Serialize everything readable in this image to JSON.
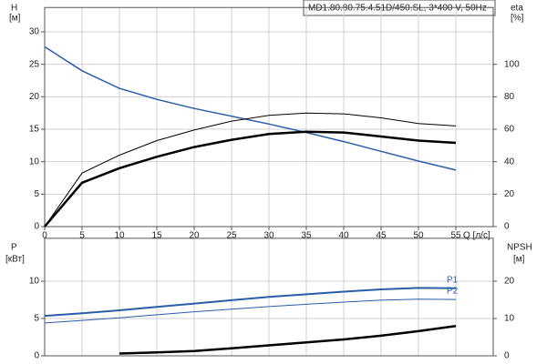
{
  "chart_data": [
    {
      "type": "line",
      "title": "MD1.80.80.75.4.51D/450.SL, 3*400 V, 50Hz",
      "ylabel": "H",
      "yunit": "[м]",
      "y2label": "eta",
      "y2unit": "[%]",
      "xlabel": "Q [л/с]",
      "x": [
        0,
        5,
        10,
        15,
        20,
        25,
        30,
        35,
        40,
        45,
        50,
        55
      ],
      "xlim": [
        0,
        60
      ],
      "xticks": [
        0,
        5,
        10,
        15,
        20,
        25,
        30,
        35,
        40,
        45,
        50,
        55
      ],
      "ylim": [
        0,
        33.75
      ],
      "yticks": [
        0,
        5,
        10,
        15,
        20,
        25,
        30
      ],
      "y2lim": [
        0,
        135
      ],
      "y2ticks": [
        0,
        20,
        40,
        60,
        80,
        100
      ],
      "grid": true,
      "series": [
        {
          "color": "#2a5ea8",
          "line_width": 1.5,
          "values": [
            27.7,
            24,
            21.3,
            19.6,
            18.2,
            17,
            15.8,
            14.5,
            13.1,
            11.6,
            10.1,
            8.7
          ]
        },
        {
          "color": "#000000",
          "line_width": 1,
          "axis": "y2",
          "values": [
            0,
            33,
            44,
            53,
            59.5,
            65,
            68.5,
            70,
            69.5,
            67,
            63.5,
            62
          ]
        },
        {
          "color": "#000000",
          "line_width": 2.5,
          "axis": "y2",
          "values": [
            0,
            27,
            36,
            43,
            49,
            53.5,
            57,
            58.5,
            58,
            55.5,
            53,
            51.6
          ]
        }
      ]
    },
    {
      "type": "line",
      "ylabel": "P",
      "yunit": "[кВт]",
      "y2label": "NPSH",
      "y2unit": "[м]",
      "x": [
        0,
        5,
        10,
        15,
        20,
        25,
        30,
        35,
        40,
        45,
        50,
        55
      ],
      "xlim": [
        0,
        60
      ],
      "ylim": [
        0,
        15.75
      ],
      "yticks": [
        0,
        5,
        10
      ],
      "y2lim": [
        0,
        31.5
      ],
      "y2ticks": [
        0,
        10,
        20
      ],
      "grid": true,
      "series": [
        {
          "name": "P1",
          "color": "#2a5ea8",
          "line_width": 2,
          "values": [
            5.35,
            5.7,
            6.1,
            6.55,
            7.0,
            7.45,
            7.9,
            8.25,
            8.6,
            8.9,
            9.1,
            9.05
          ]
        },
        {
          "name": "P2",
          "color": "#2a5ea8",
          "line_width": 1,
          "values": [
            4.4,
            4.75,
            5.1,
            5.5,
            5.9,
            6.25,
            6.6,
            6.9,
            7.2,
            7.45,
            7.6,
            7.55
          ]
        },
        {
          "color": "#000000",
          "line_width": 2.5,
          "axis": "y2",
          "values": [
            null,
            null,
            0.6,
            0.9,
            1.3,
            2.0,
            2.8,
            3.6,
            4.4,
            5.4,
            6.6,
            8
          ]
        }
      ]
    }
  ]
}
